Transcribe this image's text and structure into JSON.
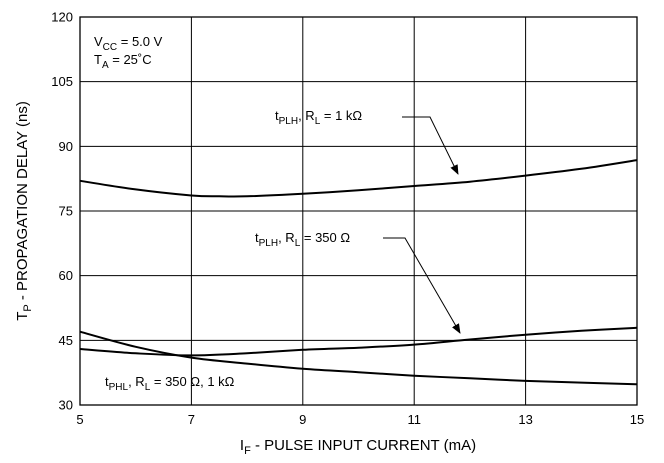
{
  "chart_data": {
    "type": "line",
    "title": "",
    "xlabel": {
      "main": "I",
      "sub": "F",
      "rest": " - PULSE INPUT CURRENT (mA)"
    },
    "ylabel": {
      "main": "T",
      "sub": "P",
      "rest": " - PROPAGATION DELAY (ns)"
    },
    "xlim": [
      5,
      15
    ],
    "ylim": [
      30,
      120
    ],
    "x_ticks": [
      5,
      7,
      9,
      11,
      13,
      15
    ],
    "y_ticks": [
      30,
      45,
      60,
      75,
      90,
      105,
      120
    ],
    "grid": true,
    "conditions": [
      {
        "main": "V",
        "sub": "CC",
        "rest": " = 5.0 V"
      },
      {
        "main": "T",
        "sub": "A",
        "rest": " = 25˚C"
      }
    ],
    "series": [
      {
        "name": "tPLH, RL = 1 kΩ",
        "label": {
          "t": "t",
          "tsub": "PLH",
          "mid": ", R",
          "rsub": "L",
          "rest": " = 1 kΩ"
        },
        "x": [
          5,
          6,
          7,
          7.5,
          8,
          9,
          10,
          11,
          12,
          13,
          14,
          15
        ],
        "y": [
          82,
          80,
          78.6,
          78.4,
          78.4,
          79,
          79.8,
          80.8,
          81.8,
          83.2,
          84.8,
          86.8
        ]
      },
      {
        "name": "tPLH, RL = 350 Ω",
        "label": {
          "t": "t",
          "tsub": "PLH",
          "mid": ", R",
          "rsub": "L",
          "rest": " = 350 Ω"
        },
        "x": [
          5,
          6,
          7,
          8,
          9,
          10,
          11,
          12,
          13,
          14,
          15
        ],
        "y": [
          43,
          42,
          41.5,
          42,
          42.8,
          43.3,
          44,
          45.2,
          46.3,
          47.2,
          47.9
        ]
      },
      {
        "name": "tPHL, RL = 350 Ω, 1 kΩ",
        "label": {
          "t": "t",
          "tsub": "PHL",
          "mid": ", R",
          "rsub": "L",
          "rest": " = 350 Ω, 1 kΩ"
        },
        "x": [
          5,
          6,
          7,
          8,
          9,
          10,
          11,
          12,
          13,
          14,
          15
        ],
        "y": [
          47,
          43.5,
          41,
          39.6,
          38.4,
          37.6,
          36.8,
          36.2,
          35.6,
          35.2,
          34.8
        ]
      }
    ]
  }
}
